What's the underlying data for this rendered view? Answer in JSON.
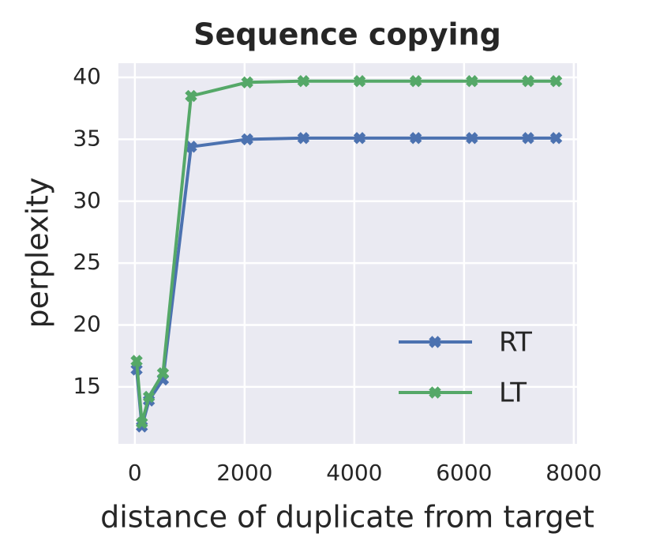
{
  "chart_data": {
    "type": "line",
    "title": "Sequence copying",
    "x_label": "distance of duplicate from target",
    "y_label": "perplexity",
    "x": [
      32,
      128,
      256,
      512,
      1024,
      2048,
      3072,
      4096,
      5120,
      6144,
      7168,
      7680
    ],
    "series": [
      {
        "name": "RT",
        "color": "#4c72b0",
        "values": [
          16.4,
          11.8,
          13.9,
          15.6,
          34.4,
          35.0,
          35.1,
          35.1,
          35.1,
          35.1,
          35.1,
          35.1
        ]
      },
      {
        "name": "LT",
        "color": "#55a868",
        "values": [
          17.1,
          12.1,
          14.2,
          16.1,
          38.5,
          39.6,
          39.7,
          39.7,
          39.7,
          39.7,
          39.7,
          39.7
        ]
      }
    ],
    "xlim": [
      -300,
      8060
    ],
    "ylim": [
      10.4,
      41.15
    ],
    "xticks": [
      0,
      2000,
      4000,
      6000,
      8000
    ],
    "yticks": [
      15,
      20,
      25,
      30,
      35,
      40
    ],
    "grid": true,
    "legend": "lower right"
  }
}
